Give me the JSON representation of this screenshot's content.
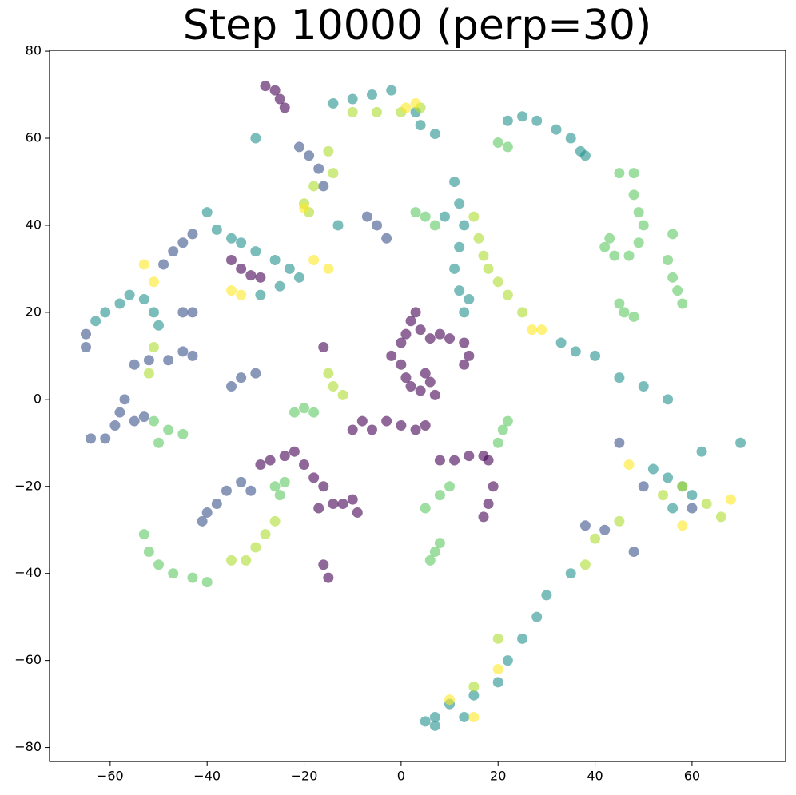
{
  "chart_data": {
    "type": "scatter",
    "title": "Step 10000 (perp=30)",
    "xlim": [
      -72.5,
      79.3
    ],
    "ylim": [
      -83.2,
      80.2
    ],
    "xticks": [
      {
        "value": -60,
        "label": "−60"
      },
      {
        "value": -40,
        "label": "−40"
      },
      {
        "value": -20,
        "label": "−20"
      },
      0,
      20,
      40,
      60
    ],
    "yticks": [
      {
        "value": -80,
        "label": "−80"
      },
      {
        "value": -60,
        "label": "−60"
      },
      {
        "value": -40,
        "label": "−40"
      },
      {
        "value": -20,
        "label": "−20"
      },
      0,
      20,
      40,
      60,
      80
    ],
    "alpha": 0.6,
    "series": [
      {
        "color": "#440154",
        "x": [
          -35,
          -33,
          -31,
          -29,
          3,
          2,
          1,
          0,
          4,
          6,
          8,
          10,
          13,
          14,
          13,
          -2,
          0,
          1,
          2,
          4,
          6,
          7,
          5,
          -10,
          -8,
          -6,
          -3,
          0,
          3,
          5,
          -29,
          -27,
          -24,
          -22,
          -20,
          -18,
          -16,
          -14,
          -17,
          -12,
          -10,
          -9,
          -16,
          -15,
          8,
          11,
          14,
          17,
          18,
          19,
          18,
          17,
          -16,
          -28,
          -26,
          -25,
          -24
        ],
        "values": [
          32,
          30,
          28.5,
          28,
          20,
          18,
          15,
          13,
          16,
          14,
          15,
          14,
          13,
          10,
          8,
          10,
          8,
          5,
          3,
          2,
          4,
          1,
          6,
          -7,
          -5,
          -7,
          -5,
          -6,
          -7,
          -6,
          -15,
          -14,
          -13,
          -12,
          -15,
          -18,
          -20,
          -24,
          -25,
          -24,
          -23,
          -26,
          -38,
          -41,
          -14,
          -14,
          -13,
          -13,
          -14,
          -20,
          -24,
          -27,
          12,
          72,
          71,
          69,
          67
        ]
      },
      {
        "color": "#3b528b",
        "x": [
          -43,
          -45,
          -47,
          -49,
          -65,
          -65,
          -64,
          -61,
          -59,
          -58,
          -57,
          -55,
          -53,
          -55,
          -52,
          -48,
          -45,
          -43,
          -45,
          -43,
          -41,
          -40,
          -38,
          -36,
          -33,
          -31,
          -35,
          -33,
          -30,
          -7,
          -5,
          -3,
          -21,
          -19,
          -17,
          -16,
          48,
          42,
          50,
          45,
          38,
          60
        ],
        "values": [
          38,
          36,
          34,
          31,
          15,
          12,
          -9,
          -9,
          -6,
          -3,
          0,
          -5,
          -4,
          8,
          9,
          9,
          11,
          10,
          20,
          20,
          -28,
          -26,
          -24,
          -21,
          -19,
          -21,
          3,
          5,
          6,
          42,
          40,
          37,
          58,
          56,
          53,
          49,
          -35,
          -30,
          -20,
          -10,
          -29,
          -25
        ]
      },
      {
        "color": "#21918c",
        "x": [
          -63,
          -61,
          -58,
          -56,
          -53,
          -51,
          -50,
          -33,
          -30,
          -26,
          -23,
          -21,
          -25,
          -29,
          -40,
          -38,
          -35,
          -14,
          -10,
          -6,
          -2,
          3,
          4,
          7,
          11,
          12,
          13,
          12,
          11,
          12,
          14,
          13,
          22,
          25,
          28,
          32,
          35,
          37,
          38,
          33,
          36,
          40,
          45,
          50,
          55,
          35,
          30,
          28,
          25,
          22,
          20,
          15,
          10,
          7,
          7,
          5,
          13,
          52,
          55,
          58,
          60,
          56,
          62,
          70,
          -30,
          -13,
          9
        ],
        "values": [
          18,
          20,
          22,
          24,
          23,
          20,
          17,
          36,
          34,
          32,
          30,
          28,
          26,
          24,
          43,
          39,
          37,
          68,
          69,
          70,
          71,
          66,
          63,
          61,
          50,
          45,
          40,
          35,
          30,
          25,
          23,
          20,
          64,
          65,
          64,
          62,
          60,
          57,
          56,
          13,
          11,
          10,
          5,
          3,
          0,
          -40,
          -45,
          -50,
          -55,
          -60,
          -65,
          -68,
          -70,
          -73,
          -75,
          -74,
          -73,
          -16,
          -18,
          -20,
          -22,
          -25,
          -12,
          -10,
          60,
          40,
          42
        ]
      },
      {
        "color": "#5ec962",
        "x": [
          45,
          48,
          48,
          49,
          50,
          49,
          47,
          44,
          42,
          43,
          56,
          55,
          56,
          57,
          58,
          45,
          46,
          48,
          -51,
          -48,
          -45,
          -50,
          -22,
          -20,
          -18,
          -26,
          -24,
          -25,
          -53,
          -52,
          -50,
          -47,
          -43,
          -40,
          7,
          6,
          8,
          5,
          8,
          10,
          20,
          21,
          22,
          3,
          5,
          7,
          22,
          20
        ],
        "values": [
          52,
          52,
          47,
          43,
          40,
          36,
          33,
          33,
          35,
          37,
          38,
          32,
          28,
          25,
          22,
          22,
          20,
          19,
          -5,
          -7,
          -8,
          -10,
          -3,
          -2,
          -3,
          -20,
          -19,
          -22,
          -31,
          -35,
          -38,
          -40,
          -41,
          -42,
          -35,
          -37,
          -33,
          -25,
          -22,
          -20,
          -10,
          -7,
          -5,
          43,
          42,
          40,
          58,
          59
        ]
      },
      {
        "color": "#addc30",
        "x": [
          -35,
          -32,
          -30,
          -28,
          -26,
          -15,
          -14,
          -18,
          -20,
          -19,
          -10,
          -5,
          0,
          4,
          15,
          16,
          17,
          18,
          20,
          22,
          25,
          54,
          58,
          63,
          66,
          45,
          40,
          38,
          20,
          15,
          -15,
          -14,
          -12,
          -52,
          -51
        ],
        "values": [
          -37,
          -37,
          -34,
          -31,
          -28,
          57,
          52,
          49,
          45,
          43,
          66,
          66,
          66,
          67,
          42,
          37,
          33,
          30,
          27,
          24,
          20,
          -22,
          -20,
          -24,
          -27,
          -28,
          -32,
          -38,
          -55,
          -66,
          6,
          3,
          1,
          6,
          12
        ]
      },
      {
        "color": "#fde725",
        "x": [
          -53,
          -35,
          -33,
          -18,
          -15,
          27,
          29,
          47,
          58,
          68,
          10,
          15,
          1,
          3,
          -20,
          20,
          -51
        ],
        "values": [
          31,
          25,
          24,
          32,
          30,
          16,
          16,
          -15,
          -29,
          -23,
          -69,
          -73,
          67,
          68,
          44,
          -62,
          27
        ]
      }
    ]
  }
}
